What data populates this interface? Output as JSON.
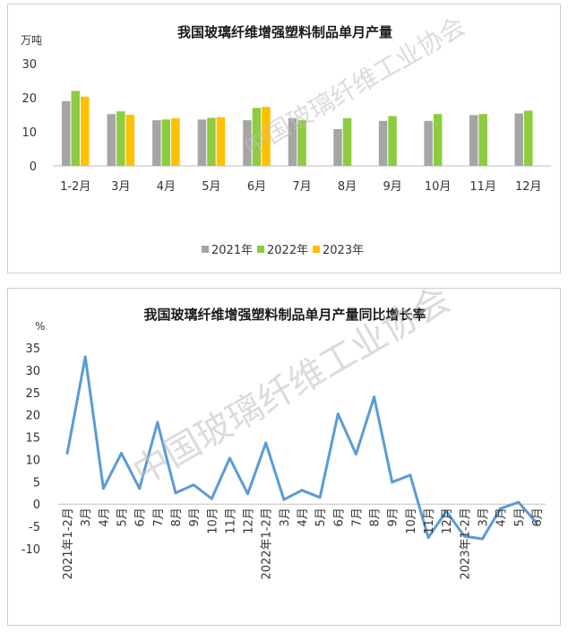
{
  "watermark_text": "中国玻璃纤维工业协会",
  "colors": {
    "series_2021": "#a5a5a5",
    "series_2022": "#8ccc3e",
    "series_2023": "#ffc000",
    "line": "#5b9bd5",
    "axis": "#bfbfbf"
  },
  "chart_data": [
    {
      "type": "bar",
      "title": "我国玻璃纤维增强塑料制品单月产量",
      "ylabel": "万吨",
      "ylim": [
        0,
        30
      ],
      "yticks": [
        0,
        10,
        20,
        30
      ],
      "grid": false,
      "legend_position": "bottom",
      "categories": [
        "1-2月",
        "3月",
        "4月",
        "5月",
        "6月",
        "7月",
        "8月",
        "9月",
        "10月",
        "11月",
        "12月"
      ],
      "series": [
        {
          "name": "2021年",
          "values": [
            19,
            15.2,
            13.4,
            13.6,
            13.4,
            14,
            10.8,
            13.2,
            13.2,
            14.9,
            15.4
          ]
        },
        {
          "name": "2022年",
          "values": [
            22,
            16,
            13.6,
            14.1,
            17,
            13.4,
            14,
            14.6,
            15.2,
            15.2,
            16.2
          ]
        },
        {
          "name": "2023年",
          "values": [
            20.3,
            15,
            14,
            14.3,
            17.3,
            null,
            null,
            null,
            null,
            null,
            null
          ]
        }
      ]
    },
    {
      "type": "line",
      "title": "我国玻璃纤维增强塑料制品单月产量同比增长率",
      "ylabel": "%",
      "ylim": [
        -10,
        35
      ],
      "yticks": [
        -10,
        -5,
        0,
        5,
        10,
        15,
        20,
        25,
        30,
        35
      ],
      "grid": false,
      "x": [
        "2021年1-2月",
        "3月",
        "4月",
        "5月",
        "6月",
        "7月",
        "8月",
        "9月",
        "10月",
        "11月",
        "12月",
        "2022年1-2月",
        "3月",
        "4月",
        "5月",
        "6月",
        "7月",
        "8月",
        "9月",
        "10月",
        "11月",
        "12月",
        "2023年1-2月",
        "3月",
        "4月",
        "5月",
        "6月"
      ],
      "series": [
        {
          "values": [
            11.4,
            33,
            3.5,
            11.4,
            3.5,
            18.3,
            2.5,
            4.3,
            1.2,
            10.3,
            2.3,
            13.7,
            1,
            3.1,
            1.5,
            20.2,
            11.2,
            24,
            4.9,
            6.5,
            -7.5,
            -1.6,
            -7.2,
            -7.8,
            -1,
            0.4,
            -4.2
          ]
        }
      ]
    }
  ]
}
